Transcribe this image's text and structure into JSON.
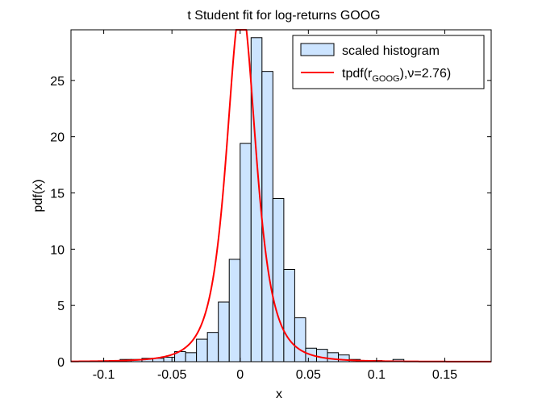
{
  "chart_data": {
    "type": "bar",
    "title": "t Student fit for log-returns GOOG",
    "xlabel": "x",
    "ylabel": "pdf(x)",
    "xlim": [
      -0.124,
      0.184
    ],
    "ylim": [
      0,
      29.5
    ],
    "xticks": [
      -0.1,
      -0.05,
      0,
      0.05,
      0.1,
      0.15
    ],
    "xtick_labels": [
      "-0.1",
      "-0.05",
      "0",
      "0.05",
      "0.1",
      "0.15"
    ],
    "yticks": [
      0,
      5,
      10,
      15,
      20,
      25
    ],
    "ytick_labels": [
      "0",
      "5",
      "10",
      "15",
      "20",
      "25"
    ],
    "grid": false,
    "legend_position": "top-right",
    "legend": {
      "histogram_label": "scaled histogram",
      "fit_label_prefix": "tpdf(r",
      "fit_label_sub": "GOOG",
      "fit_label_suffix": "),ν=2.76)"
    },
    "histogram": {
      "name": "scaled histogram",
      "bin_width": 0.008,
      "bin_left_edges": [
        -0.096,
        -0.088,
        -0.08,
        -0.072,
        -0.064,
        -0.056,
        -0.048,
        -0.04,
        -0.032,
        -0.024,
        -0.016,
        -0.008,
        0.0,
        0.008,
        0.016,
        0.024,
        0.032,
        0.04,
        0.048,
        0.056,
        0.064,
        0.072,
        0.08,
        0.088,
        0.096,
        0.104,
        0.112
      ],
      "values": [
        0.1,
        0.2,
        0.2,
        0.3,
        0.3,
        0.4,
        0.9,
        0.8,
        2.0,
        2.6,
        5.3,
        9.1,
        19.4,
        28.8,
        25.8,
        14.5,
        8.2,
        3.9,
        1.2,
        1.1,
        0.8,
        0.6,
        0.2,
        0.1,
        0.1,
        0.0,
        0.2
      ],
      "fill_color": "#cce4ff",
      "edge_color": "#000000"
    },
    "fit": {
      "name": "tpdf",
      "nu": 2.76,
      "mu": 0.0008,
      "sigma": 0.0115,
      "color": "#ff0000"
    }
  }
}
